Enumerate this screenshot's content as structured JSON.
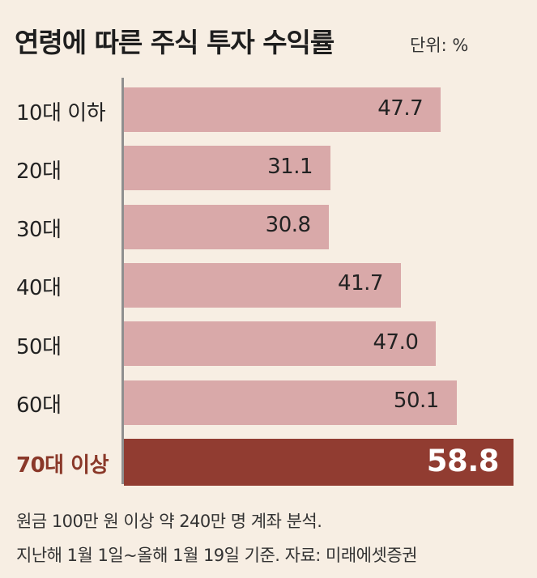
{
  "title": "연령에 따른 주식 투자 수익률",
  "unit": "단위: %",
  "chart_data": {
    "type": "bar",
    "orientation": "horizontal",
    "categories": [
      "10대 이하",
      "20대",
      "30대",
      "40대",
      "50대",
      "60대",
      "70대 이상"
    ],
    "values": [
      47.7,
      31.1,
      30.8,
      41.7,
      47.0,
      50.1,
      58.8
    ],
    "value_labels": [
      "47.7",
      "31.1",
      "30.8",
      "41.7",
      "47.0",
      "50.1",
      "58.8"
    ],
    "highlight_index": 6,
    "title": "연령에 따른 주식 투자 수익률",
    "xlabel": "",
    "ylabel": "",
    "unit": "단위: %",
    "xlim": [
      0,
      60
    ],
    "grid": false,
    "colors": {
      "bar": "#d9a9a9",
      "highlight_bar": "#913c31",
      "highlight_label": "#8a3829"
    }
  },
  "notes": [
    "원금 100만 원 이상 약 240만 명 계좌 분석.",
    "지난해 1월 1일~올해 1월 19일 기준. 자료: 미래에셋증권"
  ]
}
